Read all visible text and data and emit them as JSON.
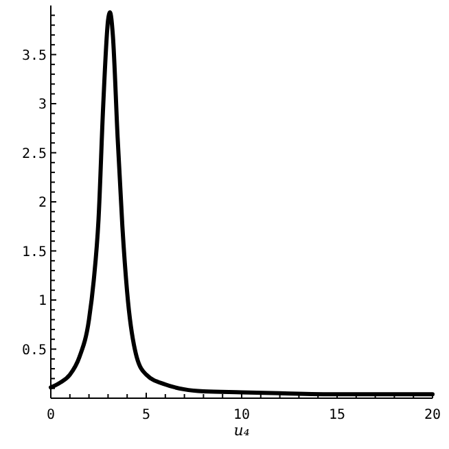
{
  "chart_data": {
    "type": "line",
    "xlabel": "u₄",
    "x": [
      0,
      0.5,
      1,
      1.5,
      2,
      2.25,
      2.5,
      2.75,
      3,
      3.1,
      3.25,
      3.5,
      3.75,
      4,
      4.5,
      5,
      6,
      7,
      8,
      10,
      12,
      15,
      20
    ],
    "series": [
      {
        "color": "#000000",
        "values": [
          0.11,
          0.16,
          0.24,
          0.42,
          0.8,
          1.2,
          1.82,
          3.0,
          3.85,
          3.93,
          3.7,
          2.66,
          1.75,
          1.08,
          0.42,
          0.24,
          0.14,
          0.09,
          0.07,
          0.06,
          0.05,
          0.04,
          0.04
        ]
      }
    ],
    "xlim": [
      0,
      20
    ],
    "ylim": [
      0,
      4
    ],
    "xticks": [
      0,
      {
        "value": 1,
        "label": null
      },
      {
        "value": 2,
        "label": null
      },
      {
        "value": 3,
        "label": null
      },
      {
        "value": 4,
        "label": null
      },
      5,
      {
        "value": 6,
        "label": null
      },
      {
        "value": 7,
        "label": null
      },
      {
        "value": 8,
        "label": null
      },
      {
        "value": 9,
        "label": null
      },
      10,
      {
        "value": 11,
        "label": null
      },
      {
        "value": 12,
        "label": null
      },
      {
        "value": 13,
        "label": null
      },
      {
        "value": 14,
        "label": null
      },
      15,
      {
        "value": 16,
        "label": null
      },
      {
        "value": 17,
        "label": null
      },
      {
        "value": 18,
        "label": null
      },
      {
        "value": 19,
        "label": null
      },
      20
    ],
    "yticks": [
      {
        "value": 0.1,
        "label": null
      },
      {
        "value": 0.2,
        "label": null
      },
      {
        "value": 0.3,
        "label": null
      },
      {
        "value": 0.4,
        "label": null
      },
      0.5,
      {
        "value": 0.6,
        "label": null
      },
      {
        "value": 0.7,
        "label": null
      },
      {
        "value": 0.8,
        "label": null
      },
      {
        "value": 0.9,
        "label": null
      },
      1,
      {
        "value": 1.1,
        "label": null
      },
      {
        "value": 1.2,
        "label": null
      },
      {
        "value": 1.3,
        "label": null
      },
      {
        "value": 1.4,
        "label": null
      },
      1.5,
      {
        "value": 1.6,
        "label": null
      },
      {
        "value": 1.7,
        "label": null
      },
      {
        "value": 1.8,
        "label": null
      },
      {
        "value": 1.9,
        "label": null
      },
      2,
      {
        "value": 2.1,
        "label": null
      },
      {
        "value": 2.2,
        "label": null
      },
      {
        "value": 2.3,
        "label": null
      },
      {
        "value": 2.4,
        "label": null
      },
      2.5,
      {
        "value": 2.6,
        "label": null
      },
      {
        "value": 2.7,
        "label": null
      },
      {
        "value": 2.8,
        "label": null
      },
      {
        "value": 2.9,
        "label": null
      },
      3,
      {
        "value": 3.1,
        "label": null
      },
      {
        "value": 3.2,
        "label": null
      },
      {
        "value": 3.3,
        "label": null
      },
      {
        "value": 3.4,
        "label": null
      },
      3.5,
      {
        "value": 3.6,
        "label": null
      },
      {
        "value": 3.7,
        "label": null
      },
      {
        "value": 3.8,
        "label": null
      },
      {
        "value": 3.9,
        "label": null
      }
    ],
    "marker": "none",
    "line_style": "solid"
  }
}
